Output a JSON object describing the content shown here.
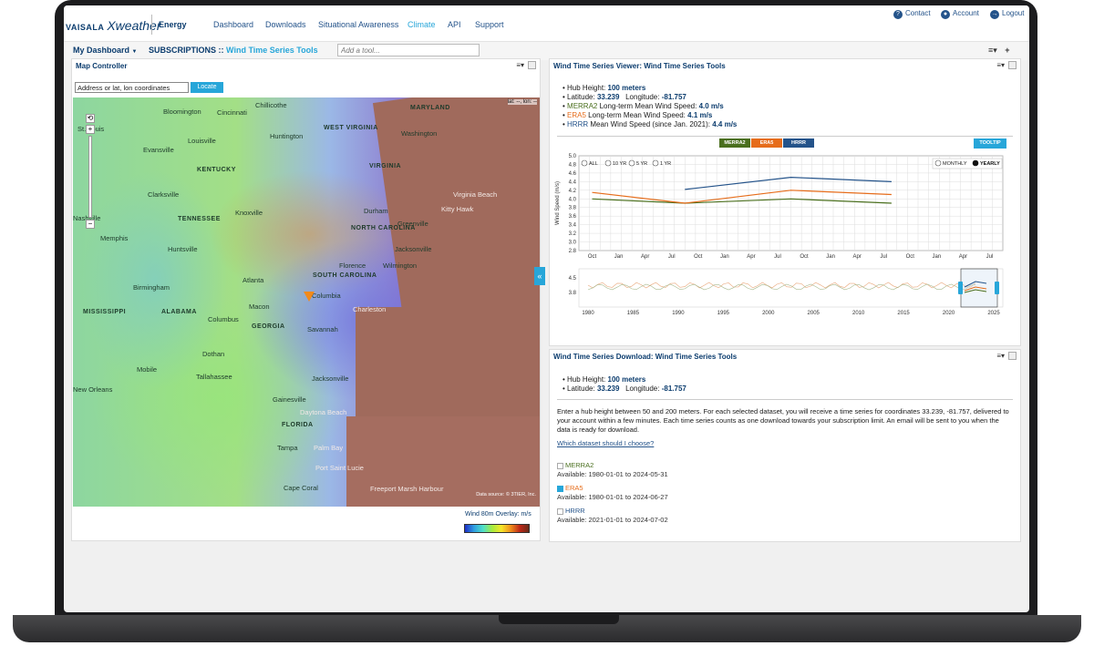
{
  "nav": {
    "brand": "VAISALA",
    "product": "Xweather",
    "section": "Energy",
    "items": [
      "Dashboard",
      "Downloads",
      "Situational Awareness",
      "Climate",
      "API",
      "Support"
    ],
    "active": "Climate",
    "utility": [
      "Contact",
      "Account",
      "Logout"
    ]
  },
  "dashbar": {
    "my_dashboard": "My Dashboard",
    "subscriptions": "SUBSCRIPTIONS ::",
    "tool_name": "Wind Time Series Tools",
    "add_tool_placeholder": "Add a tool..."
  },
  "map_controller": {
    "title": "Map Controller",
    "search_value": "Address or lat, lon coordinates",
    "locate_label": "Locate",
    "latlon_readout": "lat: --, lon: --",
    "data_source": "Data source: © 3TIER, Inc.",
    "overlay_label": "Wind 80m Overlay: m/s",
    "labels": {
      "states": [
        "MARYLAND",
        "WEST VIRGINIA",
        "VIRGINIA",
        "KENTUCKY",
        "TENNESSEE",
        "NORTH CAROLINA",
        "SOUTH CAROLINA",
        "MISSISSIPPI",
        "ALABAMA",
        "GEORGIA",
        "FLORIDA"
      ],
      "cities": [
        "Bloomington",
        "Cincinnati",
        "Chillicothe",
        "Washington",
        "St. Louis",
        "Louisville",
        "Huntington",
        "Evansville",
        "Clarksville",
        "Knoxville",
        "Nashville",
        "Durham",
        "Virginia Beach",
        "Kitty Hawk",
        "Greenville",
        "Memphis",
        "Huntsville",
        "Jacksonville",
        "Florence",
        "Wilmington",
        "Atlanta",
        "Birmingham",
        "Columbia",
        "Macon",
        "Charleston",
        "Columbus",
        "Savannah",
        "Dothan",
        "Mobile",
        "Tallahassee",
        "Jacksonville",
        "New Orleans",
        "Gainesville",
        "Daytona Beach",
        "Tampa",
        "Palm Bay",
        "Port Saint Lucie",
        "Cape Coral",
        "Freeport Marsh Harbour"
      ]
    }
  },
  "viewer": {
    "title": "Wind Time Series Viewer: Wind Time Series Tools",
    "hub_height_label": "Hub Height:",
    "hub_height": "100 meters",
    "latitude_label": "Latitude:",
    "latitude": "33.239",
    "longitude_label": "Longitude:",
    "longitude": "-81.757",
    "merra_label": "MERRA2",
    "merra_text": "Long-term Mean Wind Speed:",
    "merra_value": "4.0 m/s",
    "era_label": "ERA5",
    "era_text": "Long-term Mean Wind Speed:",
    "era_value": "4.1 m/s",
    "hrrr_label": "HRRR",
    "hrrr_text": "Mean Wind Speed (since Jan. 2021):",
    "hrrr_value": "4.4 m/s",
    "buttons": [
      "MERRA2",
      "ERA5",
      "HRRR"
    ],
    "tooltip_label": "TOOLTIP",
    "range_options": [
      "ALL",
      "10 YR",
      "5 YR",
      "1 YR"
    ],
    "agg_options": [
      "MONTHLY",
      "YEARLY"
    ],
    "colors": {
      "merra": "#4a6f1e",
      "era": "#e66c1a",
      "hrrr": "#24538a"
    }
  },
  "chart_data": {
    "type": "line",
    "ylabel": "Wind Speed (m/s)",
    "ylim": [
      2.8,
      5.0
    ],
    "yticks": [
      "5.0",
      "4.8",
      "4.6",
      "4.4",
      "4.2",
      "4.0",
      "3.8",
      "3.6",
      "3.4",
      "3.2",
      "3.0",
      "2.8"
    ],
    "xticks": [
      "Oct",
      "Jan",
      "Apr",
      "Jul",
      "Oct",
      "Jan",
      "Apr",
      "Jul",
      "Oct",
      "Jan",
      "Apr",
      "Jul",
      "Oct",
      "Jan",
      "Apr",
      "Jul"
    ],
    "series": [
      {
        "name": "MERRA2",
        "color": "#4a6f1e",
        "points": [
          [
            0,
            4.0
          ],
          [
            3.5,
            3.9
          ],
          [
            7.5,
            4.0
          ],
          [
            11.3,
            3.9
          ]
        ]
      },
      {
        "name": "ERA5",
        "color": "#e66c1a",
        "points": [
          [
            0,
            4.15
          ],
          [
            3.5,
            3.9
          ],
          [
            7.5,
            4.2
          ],
          [
            11.3,
            4.1
          ]
        ]
      },
      {
        "name": "HRRR",
        "color": "#24538a",
        "points": [
          [
            3.5,
            4.22
          ],
          [
            7.5,
            4.5
          ],
          [
            11.3,
            4.4
          ]
        ]
      }
    ],
    "navigator": {
      "xticks": [
        "1980",
        "1985",
        "1990",
        "1995",
        "2000",
        "2005",
        "2010",
        "2015",
        "2020",
        "2025"
      ],
      "yticks": [
        "4.5",
        "3.8"
      ]
    }
  },
  "download": {
    "title": "Wind Time Series Download: Wind Time Series Tools",
    "hub_height_label": "Hub Height:",
    "hub_height": "100 meters",
    "latitude_label": "Latitude:",
    "latitude": "33.239",
    "longitude_label": "Longitude:",
    "longitude": "-81.757",
    "description": "Enter a hub height between 50 and 200 meters. For each selected dataset, you will receive a time series for coordinates 33.239, -81.757, delivered to your account within a few minutes. Each time series counts as one download towards your subscription limit. An email will be sent to you when the data is ready for download.",
    "help_link": "Which dataset should I choose?",
    "datasets": [
      {
        "name": "MERRA2",
        "available": "Available: 1980-01-01 to 2024-05-31",
        "checked": false
      },
      {
        "name": "ERA5",
        "available": "Available: 1980-01-01 to 2024-06-27",
        "checked": true
      },
      {
        "name": "HRRR",
        "available": "Available: 2021-01-01 to 2024-07-02",
        "checked": false
      }
    ]
  }
}
